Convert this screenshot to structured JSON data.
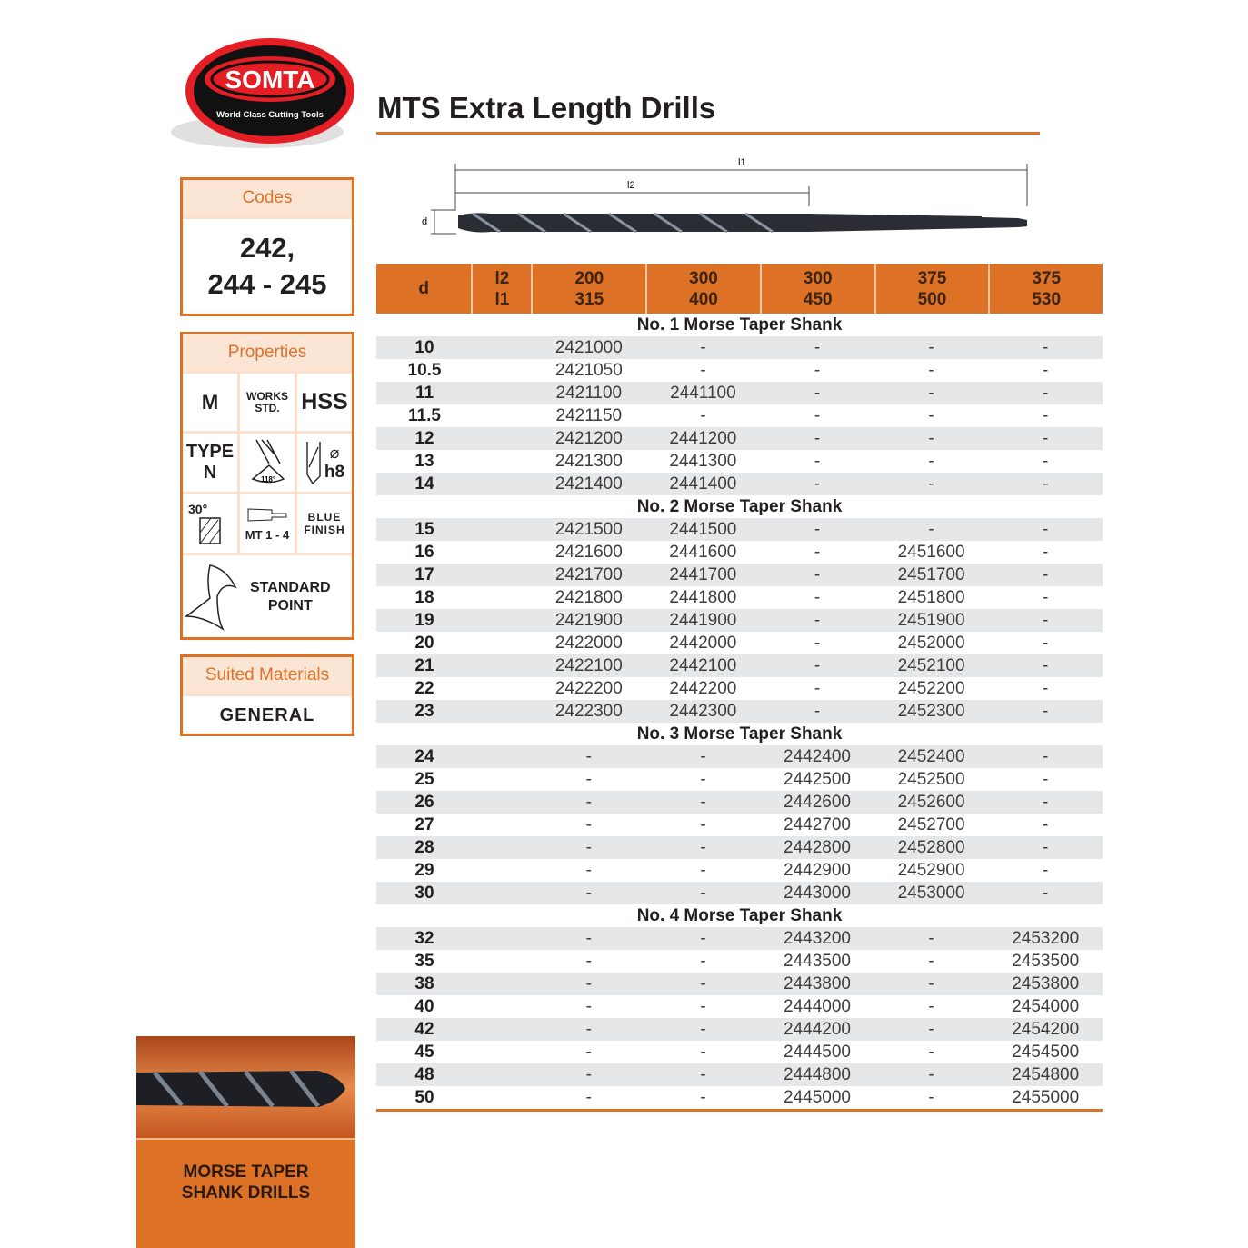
{
  "brand": {
    "name": "SOMTA",
    "tagline": "World Class Cutting Tools"
  },
  "title": "MTS Extra Length Drills",
  "codes": {
    "label": "Codes",
    "line1": "242,",
    "line2": "244 - 245"
  },
  "properties": {
    "label": "Properties",
    "m": "M",
    "works": "WORKS",
    "std": "STD.",
    "hss": "HSS",
    "type": "TYPE",
    "n": "N",
    "angle": "118°",
    "h8": "h8",
    "helix": "30°",
    "mt": "MT 1 - 4",
    "blue": "BLUE",
    "finish": "FINISH",
    "standard": "STANDARD",
    "point": "POINT"
  },
  "suited": {
    "label": "Suited Materials",
    "value": "GENERAL"
  },
  "diagram": {
    "l1": "l1",
    "l2": "l2",
    "d": "d"
  },
  "table": {
    "header": {
      "d": "d",
      "l2": "l2",
      "l1": "l1",
      "cols": [
        [
          "200",
          "315"
        ],
        [
          "300",
          "400"
        ],
        [
          "300",
          "450"
        ],
        [
          "375",
          "500"
        ],
        [
          "375",
          "530"
        ]
      ]
    },
    "sections": [
      {
        "title": "No. 1 Morse Taper Shank",
        "rows": [
          [
            "10",
            "2421000",
            "-",
            "-",
            "-",
            "-"
          ],
          [
            "10.5",
            "2421050",
            "-",
            "-",
            "-",
            "-"
          ],
          [
            "11",
            "2421100",
            "2441100",
            "-",
            "-",
            "-"
          ],
          [
            "11.5",
            "2421150",
            "-",
            "-",
            "-",
            "-"
          ],
          [
            "12",
            "2421200",
            "2441200",
            "-",
            "-",
            "-"
          ],
          [
            "13",
            "2421300",
            "2441300",
            "-",
            "-",
            "-"
          ],
          [
            "14",
            "2421400",
            "2441400",
            "-",
            "-",
            "-"
          ]
        ]
      },
      {
        "title": "No. 2 Morse Taper Shank",
        "rows": [
          [
            "15",
            "2421500",
            "2441500",
            "-",
            "-",
            "-"
          ],
          [
            "16",
            "2421600",
            "2441600",
            "-",
            "2451600",
            "-"
          ],
          [
            "17",
            "2421700",
            "2441700",
            "-",
            "2451700",
            "-"
          ],
          [
            "18",
            "2421800",
            "2441800",
            "-",
            "2451800",
            "-"
          ],
          [
            "19",
            "2421900",
            "2441900",
            "-",
            "2451900",
            "-"
          ],
          [
            "20",
            "2422000",
            "2442000",
            "-",
            "2452000",
            "-"
          ],
          [
            "21",
            "2422100",
            "2442100",
            "-",
            "2452100",
            "-"
          ],
          [
            "22",
            "2422200",
            "2442200",
            "-",
            "2452200",
            "-"
          ],
          [
            "23",
            "2422300",
            "2442300",
            "-",
            "2452300",
            "-"
          ]
        ]
      },
      {
        "title": "No. 3 Morse Taper Shank",
        "rows": [
          [
            "24",
            "-",
            "-",
            "2442400",
            "2452400",
            "-"
          ],
          [
            "25",
            "-",
            "-",
            "2442500",
            "2452500",
            "-"
          ],
          [
            "26",
            "-",
            "-",
            "2442600",
            "2452600",
            "-"
          ],
          [
            "27",
            "-",
            "-",
            "2442700",
            "2452700",
            "-"
          ],
          [
            "28",
            "-",
            "-",
            "2442800",
            "2452800",
            "-"
          ],
          [
            "29",
            "-",
            "-",
            "2442900",
            "2452900",
            "-"
          ],
          [
            "30",
            "-",
            "-",
            "2443000",
            "2453000",
            "-"
          ]
        ]
      },
      {
        "title": "No. 4 Morse Taper Shank",
        "rows": [
          [
            "32",
            "-",
            "-",
            "2443200",
            "-",
            "2453200"
          ],
          [
            "35",
            "-",
            "-",
            "2443500",
            "-",
            "2453500"
          ],
          [
            "38",
            "-",
            "-",
            "2443800",
            "-",
            "2453800"
          ],
          [
            "40",
            "-",
            "-",
            "2444000",
            "-",
            "2454000"
          ],
          [
            "42",
            "-",
            "-",
            "2444200",
            "-",
            "2454200"
          ],
          [
            "45",
            "-",
            "-",
            "2444500",
            "-",
            "2454500"
          ],
          [
            "48",
            "-",
            "-",
            "2444800",
            "-",
            "2454800"
          ],
          [
            "50",
            "-",
            "-",
            "2445000",
            "-",
            "2455000"
          ]
        ]
      }
    ]
  },
  "promo": {
    "line1": "MORSE TAPER",
    "line2": "SHANK DRILLS"
  },
  "colors": {
    "accent": "#dd7226",
    "row_alt": "#e6e7e9",
    "brand_red": "#e31e24"
  }
}
